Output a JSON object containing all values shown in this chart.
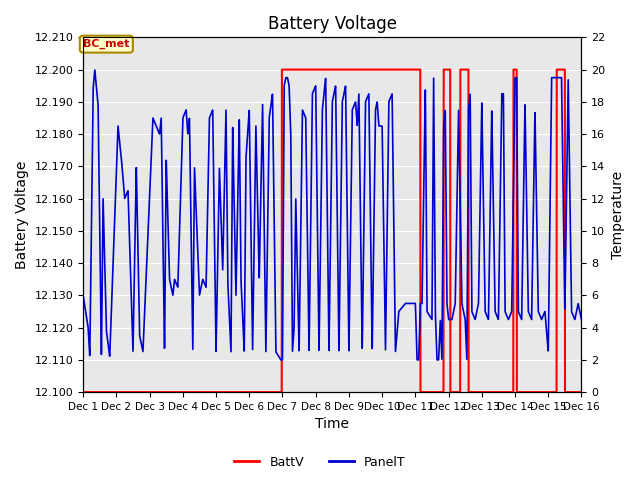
{
  "title": "Battery Voltage",
  "xlabel": "Time",
  "ylabel_left": "Battery Voltage",
  "ylabel_right": "Temperature",
  "left_ylim": [
    12.1,
    12.21
  ],
  "right_ylim": [
    0,
    22
  ],
  "left_yticks": [
    12.1,
    12.11,
    12.12,
    12.13,
    12.14,
    12.15,
    12.16,
    12.17,
    12.18,
    12.19,
    12.2,
    12.21
  ],
  "right_yticks": [
    0,
    2,
    4,
    6,
    8,
    10,
    12,
    14,
    16,
    18,
    20,
    22
  ],
  "xtick_labels": [
    "Dec 1",
    "Dec 2",
    "Dec 3",
    "Dec 4",
    "Dec 5",
    "Dec 6",
    "Dec 7",
    "Dec 8",
    "Dec 9",
    "Dec 10",
    "Dec 11",
    "Dec 12",
    "Dec 13",
    "Dec 14",
    "Dec 15",
    "Dec 16"
  ],
  "xtick_positions": [
    1,
    2,
    3,
    4,
    5,
    6,
    7,
    8,
    9,
    10,
    11,
    12,
    13,
    14,
    15,
    16
  ],
  "batt_color": "#FF0000",
  "panel_color": "#0000CC",
  "fig_bg": "#FFFFFF",
  "plot_bg": "#E8E8E8",
  "label_box_facecolor": "#FFFFCC",
  "label_box_edgecolor": "#AA8800",
  "label_box_text": "BC_met",
  "label_box_textcolor": "#CC0000",
  "legend_labels": [
    "BattV",
    "PanelT"
  ],
  "legend_colors": [
    "#FF0000",
    "#0000CC"
  ],
  "grid_color": "#FFFFFF",
  "figsize": [
    6.4,
    4.8
  ],
  "dpi": 100
}
